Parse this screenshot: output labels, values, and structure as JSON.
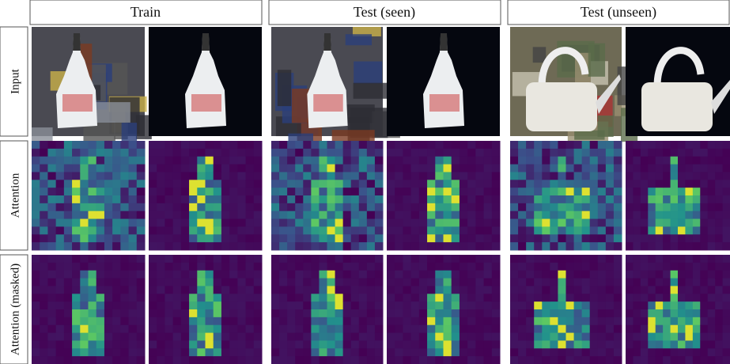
{
  "columns": [
    "Train",
    "Test (seen)",
    "Test (unseen)"
  ],
  "rows": [
    "Input",
    "Attention",
    "Attention (masked)"
  ]
}
